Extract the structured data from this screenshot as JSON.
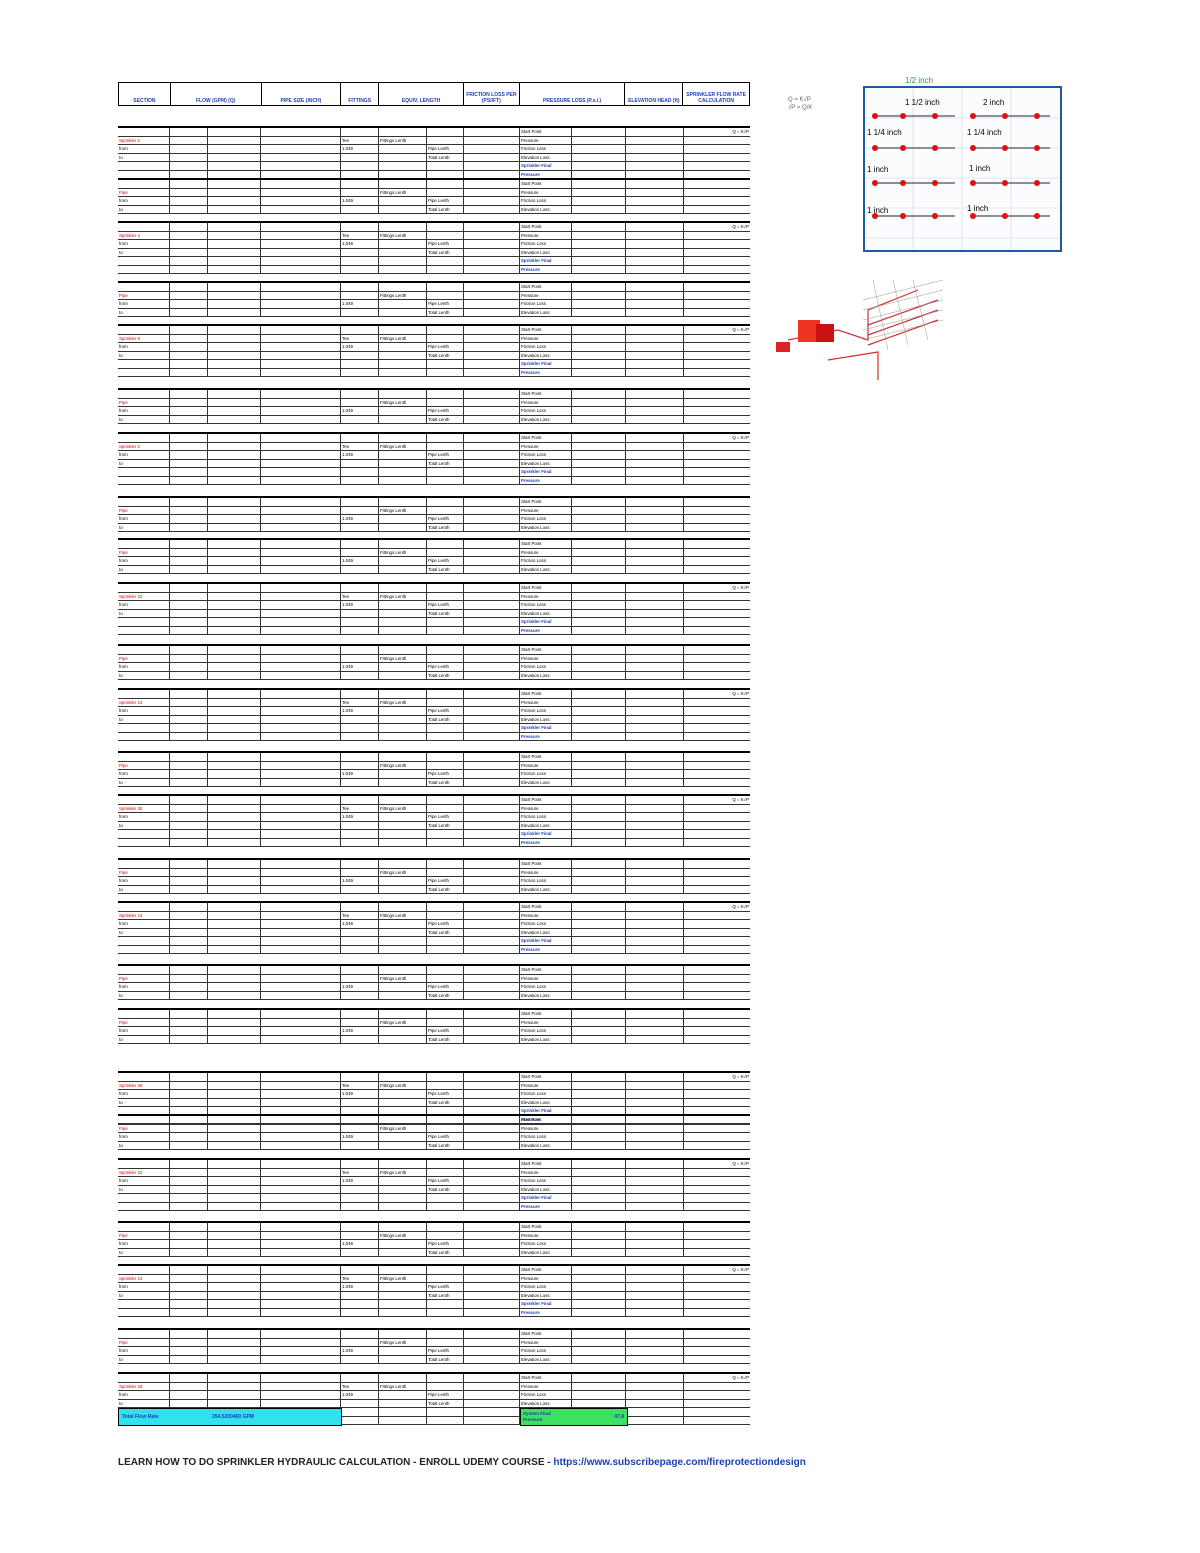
{
  "headers": [
    "SECTION",
    "FLOW (GPM) (Q)",
    "PIPE SIZE (INCH)",
    "FITTINGS",
    "EQUIV. LENGTH",
    "FRICTION LOSS PER (PSI/FT)",
    "PRESSURE LOSS (P.s.i.)",
    "ELEVATION HEAD (ft)",
    "SPRINKLER FLOW RATE CALCULATION"
  ],
  "block_labels": [
    "Sprinkler 2",
    "Pipe",
    "Sprinkler 4",
    "Pipe",
    "Sprinkler 8",
    "Pipe",
    "Sprinkler 2",
    "Pipe",
    "Pipe",
    "Sprinkler 22",
    "Pipe",
    "Sprinkler 24",
    "Pipe",
    "Sprinkler 28",
    "Pipe",
    "Sprinkler 24",
    "Pipe",
    "Pipe",
    "Sprinkler 28",
    "Pipe",
    "Sprinkler 22",
    "Pipe",
    "Sprinkler 24",
    "Pipe",
    "Sprinkler 28"
  ],
  "row_terms": {
    "from": "from",
    "to": "to",
    "fittings": "Fittings Lenth",
    "pipe": "Pipe Lenth",
    "total": "Total Lenth",
    "start": "Start Point",
    "pressure": "Pressure",
    "friction": "Friction Loss",
    "elev": "Elevation Loss",
    "spr_final": "Sprinkler Final",
    "formula": "Q = K√P",
    "tee": "Tee"
  },
  "total_flow": {
    "label": "Total Flow Rate",
    "value": "254.5200460 GPM"
  },
  "final": {
    "label1": "System Final",
    "label2": "Pressure",
    "value": "47.8"
  },
  "footer": {
    "text": "LEARN HOW TO DO SPRINKLER HYDRAULIC CALCULATION - ENROLL UDEMY COURSE - ",
    "link": "https://www.subscribepage.com/fireprotectiondesign"
  },
  "tile": {
    "top": "1/2 inch",
    "labels": [
      "1 1/2 inch",
      "2 inch",
      "1 1/4 inch",
      "1 1/4 inch",
      "1 inch",
      "1 inch",
      "1 inch",
      "1 inch"
    ]
  },
  "note": {
    "line1": "Q = K√P",
    "line2": "√P = Q/K"
  }
}
